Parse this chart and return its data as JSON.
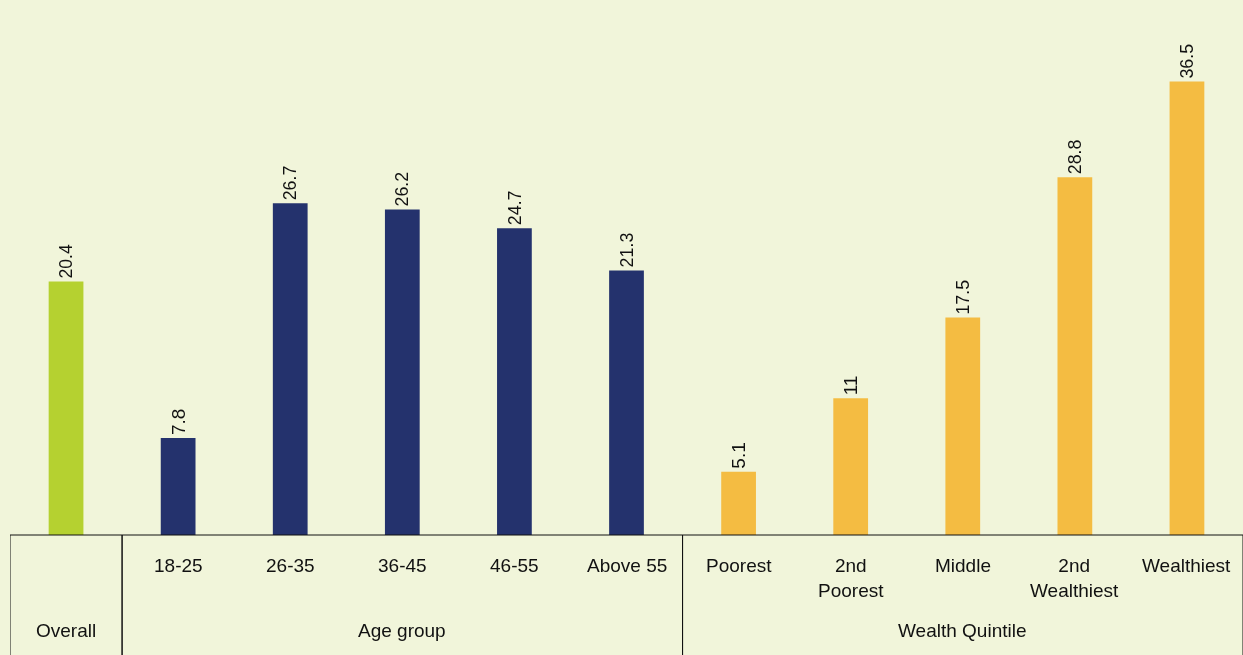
{
  "chart_data": {
    "type": "bar",
    "categories": [
      null,
      "18-25",
      "26-35",
      "36-45",
      "46-55",
      "Above 55",
      "Poorest",
      "2nd\nPoorest",
      "Middle",
      "2nd\nWealthiest",
      "Wealthiest"
    ],
    "values": [
      20.4,
      7.8,
      26.7,
      26.2,
      24.7,
      21.3,
      5.1,
      11,
      17.5,
      28.8,
      36.5
    ],
    "colors": [
      "#b5d130",
      "#24326d",
      "#24326d",
      "#24326d",
      "#24326d",
      "#24326d",
      "#f4bc42",
      "#f4bc42",
      "#f4bc42",
      "#f4bc42",
      "#f4bc42"
    ],
    "data_labels": true,
    "annotations": [
      "Overall",
      "Age group",
      "Wealth Quintile"
    ],
    "grid": false,
    "legend": false
  }
}
